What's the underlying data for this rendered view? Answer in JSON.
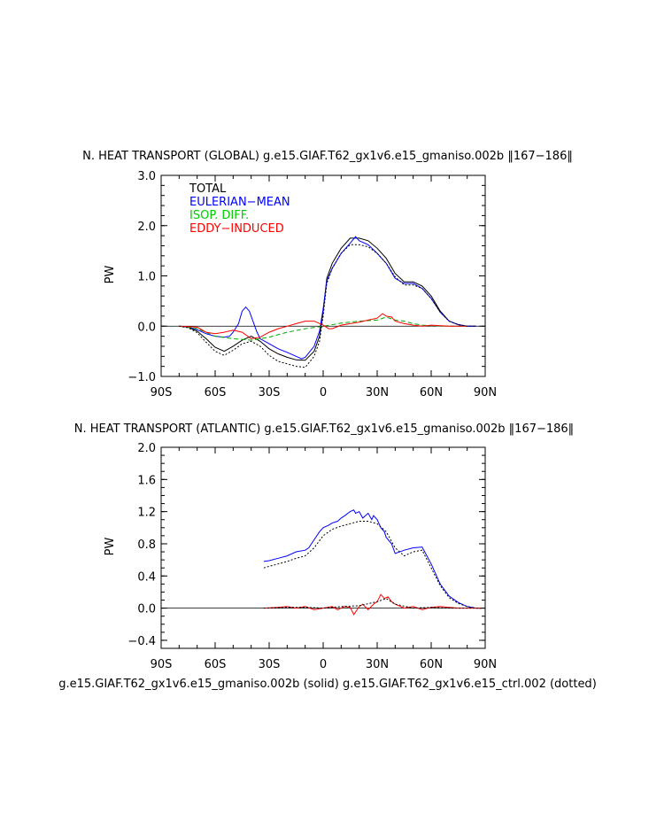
{
  "chart_data": [
    {
      "type": "line",
      "title": "N. HEAT TRANSPORT (GLOBAL) g.e15.GIAF.T62_gx1v6.e15_gmaniso.002b ‖167−186‖",
      "xlabel": "",
      "ylabel": "PW",
      "xlim": [
        -90,
        90
      ],
      "ylim": [
        -1.0,
        3.0
      ],
      "xticks": [
        -90,
        -60,
        -30,
        0,
        30,
        60,
        90
      ],
      "xtick_labels": [
        "90S",
        "60S",
        "30S",
        "0",
        "30N",
        "60N",
        "90N"
      ],
      "yticks": [
        -1.0,
        0.0,
        1.0,
        2.0,
        3.0
      ],
      "ytick_labels": [
        "−1.0",
        "0.0",
        "1.0",
        "2.0",
        "3.0"
      ],
      "legend": [
        {
          "label": "TOTAL",
          "color": "#000000"
        },
        {
          "label": "EULERIAN−MEAN",
          "color": "#0000ff"
        },
        {
          "label": "ISOP. DIFF.",
          "color": "#00cc00"
        },
        {
          "label": "EDDY−INDUCED",
          "color": "#ff0000"
        }
      ],
      "series": [
        {
          "name": "TOTAL (solid)",
          "color": "#000000",
          "dash": "none",
          "x": [
            -80,
            -75,
            -70,
            -65,
            -60,
            -55,
            -50,
            -45,
            -40,
            -35,
            -30,
            -25,
            -20,
            -15,
            -10,
            -5,
            -2,
            0,
            2,
            5,
            10,
            15,
            20,
            25,
            30,
            35,
            40,
            45,
            50,
            55,
            60,
            65,
            70,
            75,
            80,
            85
          ],
          "y": [
            0,
            -0.02,
            -0.1,
            -0.25,
            -0.42,
            -0.5,
            -0.4,
            -0.28,
            -0.2,
            -0.3,
            -0.45,
            -0.55,
            -0.62,
            -0.67,
            -0.68,
            -0.5,
            -0.2,
            0.3,
            0.95,
            1.25,
            1.55,
            1.75,
            1.75,
            1.7,
            1.55,
            1.35,
            1.05,
            0.88,
            0.88,
            0.8,
            0.6,
            0.3,
            0.1,
            0.03,
            0,
            0
          ]
        },
        {
          "name": "EULERIAN-MEAN (solid)",
          "color": "#0000ff",
          "dash": "none",
          "x": [
            -80,
            -75,
            -70,
            -65,
            -60,
            -55,
            -52,
            -50,
            -47,
            -45,
            -43,
            -41,
            -39,
            -37,
            -35,
            -30,
            -25,
            -20,
            -15,
            -12,
            -10,
            -5,
            -2,
            0,
            2,
            5,
            10,
            15,
            18,
            20,
            25,
            30,
            35,
            40,
            45,
            50,
            55,
            60,
            65,
            70,
            75,
            80,
            85
          ],
          "y": [
            0,
            -0.02,
            -0.07,
            -0.15,
            -0.2,
            -0.22,
            -0.2,
            -0.12,
            0.05,
            0.3,
            0.38,
            0.3,
            0.1,
            -0.1,
            -0.25,
            -0.35,
            -0.45,
            -0.52,
            -0.6,
            -0.65,
            -0.62,
            -0.4,
            -0.1,
            0.35,
            0.9,
            1.15,
            1.45,
            1.65,
            1.78,
            1.7,
            1.62,
            1.45,
            1.25,
            0.95,
            0.85,
            0.85,
            0.75,
            0.55,
            0.28,
            0.1,
            0.03,
            0,
            0
          ]
        },
        {
          "name": "ISOP. DIFF. (dashed)",
          "color": "#00aa00",
          "dash": "5,3",
          "x": [
            -80,
            -70,
            -60,
            -50,
            -40,
            -30,
            -20,
            -10,
            0,
            10,
            20,
            30,
            35,
            40,
            45,
            50,
            55,
            60,
            70,
            80
          ],
          "y": [
            0,
            -0.05,
            -0.2,
            -0.25,
            -0.28,
            -0.22,
            -0.12,
            -0.05,
            0.0,
            0.06,
            0.1,
            0.12,
            0.18,
            0.12,
            0.1,
            0.05,
            0.02,
            0.01,
            0.0,
            0
          ]
        },
        {
          "name": "EDDY-INDUCED (solid)",
          "color": "#ff0000",
          "dash": "none",
          "x": [
            -80,
            -70,
            -65,
            -60,
            -55,
            -50,
            -45,
            -40,
            -35,
            -30,
            -25,
            -20,
            -15,
            -10,
            -5,
            0,
            3,
            5,
            10,
            15,
            20,
            25,
            30,
            33,
            35,
            38,
            40,
            45,
            50,
            55,
            60,
            70,
            80
          ],
          "y": [
            0,
            -0.02,
            -0.12,
            -0.15,
            -0.12,
            -0.08,
            -0.12,
            -0.25,
            -0.22,
            -0.12,
            -0.05,
            0.0,
            0.05,
            0.1,
            0.1,
            0.02,
            -0.05,
            -0.05,
            0.02,
            0.05,
            0.08,
            0.12,
            0.16,
            0.25,
            0.2,
            0.18,
            0.1,
            0.05,
            0.02,
            0.0,
            0.02,
            0.0,
            0
          ]
        },
        {
          "name": "TOTAL (dotted, ctrl)",
          "color": "#000000",
          "dash": "2,2",
          "x": [
            -80,
            -75,
            -70,
            -65,
            -60,
            -55,
            -50,
            -45,
            -40,
            -35,
            -30,
            -25,
            -20,
            -15,
            -10,
            -5,
            -2,
            0,
            2,
            5,
            10,
            15,
            20,
            25,
            30,
            35,
            40,
            45,
            50,
            55,
            60,
            65,
            70,
            75,
            80,
            85
          ],
          "y": [
            0,
            -0.03,
            -0.13,
            -0.32,
            -0.5,
            -0.58,
            -0.48,
            -0.35,
            -0.3,
            -0.4,
            -0.58,
            -0.7,
            -0.75,
            -0.8,
            -0.82,
            -0.6,
            -0.3,
            0.2,
            0.85,
            1.15,
            1.45,
            1.62,
            1.62,
            1.58,
            1.45,
            1.25,
            0.98,
            0.82,
            0.82,
            0.75,
            0.55,
            0.28,
            0.1,
            0.03,
            0,
            0
          ]
        }
      ]
    },
    {
      "type": "line",
      "title": "N. HEAT TRANSPORT (ATLANTIC) g.e15.GIAF.T62_gx1v6.e15_gmaniso.002b ‖167−186‖",
      "xlabel": "",
      "ylabel": "PW",
      "xlim": [
        -90,
        90
      ],
      "ylim": [
        -0.5,
        2.0
      ],
      "xticks": [
        -90,
        -60,
        -30,
        0,
        30,
        60,
        90
      ],
      "xtick_labels": [
        "90S",
        "60S",
        "30S",
        "0",
        "30N",
        "60N",
        "90N"
      ],
      "yticks": [
        -0.4,
        0.0,
        0.4,
        0.8,
        1.2,
        1.6,
        2.0
      ],
      "ytick_labels": [
        "−0.4",
        "0.0",
        "0.4",
        "0.8",
        "1.2",
        "1.6",
        "2.0"
      ],
      "series": [
        {
          "name": "TOTAL (solid)",
          "color": "#0000ff",
          "dash": "none",
          "x": [
            -33,
            -30,
            -25,
            -20,
            -15,
            -10,
            -8,
            -5,
            -2,
            0,
            3,
            5,
            8,
            10,
            12,
            15,
            17,
            18,
            20,
            22,
            25,
            27,
            28,
            30,
            32,
            34,
            35,
            38,
            40,
            45,
            50,
            55,
            60,
            65,
            70,
            75,
            80,
            85,
            88
          ],
          "y": [
            0.58,
            0.59,
            0.62,
            0.65,
            0.7,
            0.72,
            0.75,
            0.85,
            0.95,
            1.0,
            1.03,
            1.06,
            1.08,
            1.12,
            1.15,
            1.2,
            1.22,
            1.18,
            1.2,
            1.12,
            1.18,
            1.1,
            1.15,
            1.1,
            1.0,
            0.95,
            0.88,
            0.8,
            0.68,
            0.72,
            0.75,
            0.76,
            0.55,
            0.3,
            0.15,
            0.07,
            0.02,
            0.0,
            0.0
          ]
        },
        {
          "name": "TOTAL (dotted, ctrl)",
          "color": "#000000",
          "dash": "2,2",
          "x": [
            -33,
            -30,
            -25,
            -20,
            -15,
            -10,
            -5,
            0,
            5,
            10,
            15,
            20,
            25,
            30,
            35,
            40,
            45,
            50,
            55,
            60,
            65,
            70,
            75,
            80,
            85,
            88
          ],
          "y": [
            0.5,
            0.52,
            0.55,
            0.58,
            0.62,
            0.65,
            0.75,
            0.9,
            0.98,
            1.02,
            1.05,
            1.08,
            1.08,
            1.05,
            0.95,
            0.75,
            0.65,
            0.7,
            0.72,
            0.5,
            0.28,
            0.13,
            0.06,
            0.02,
            0.0,
            0.0
          ]
        },
        {
          "name": "EDDY-INDUCED (solid)",
          "color": "#ff0000",
          "dash": "none",
          "x": [
            -33,
            -25,
            -20,
            -15,
            -10,
            -5,
            0,
            5,
            8,
            10,
            12,
            15,
            17,
            20,
            22,
            25,
            28,
            30,
            32,
            34,
            36,
            38,
            40,
            45,
            50,
            55,
            60,
            65,
            70,
            75,
            80,
            88
          ],
          "y": [
            0.0,
            0.01,
            0.02,
            0.0,
            0.02,
            -0.02,
            0.0,
            0.02,
            -0.02,
            0.0,
            0.02,
            0.01,
            -0.08,
            0.02,
            0.05,
            -0.02,
            0.05,
            0.08,
            0.17,
            0.12,
            0.14,
            0.08,
            0.05,
            0.0,
            0.02,
            -0.02,
            0.01,
            0.02,
            0.01,
            0.0,
            0.0,
            0.0
          ]
        },
        {
          "name": "EDDY-INDUCED (dotted, ctrl)",
          "color": "#000000",
          "dash": "2,2",
          "x": [
            -33,
            -20,
            -10,
            0,
            10,
            20,
            30,
            35,
            40,
            50,
            60,
            70,
            80,
            88
          ],
          "y": [
            0.0,
            0.01,
            0.01,
            0.0,
            0.02,
            0.03,
            0.08,
            0.12,
            0.05,
            0.0,
            0.01,
            0.0,
            0.0,
            0.0
          ]
        }
      ]
    }
  ],
  "footer": "g.e15.GIAF.T62_gx1v6.e15_gmaniso.002b (solid) g.e15.GIAF.T62_gx1v6.e15_ctrl.002 (dotted)"
}
